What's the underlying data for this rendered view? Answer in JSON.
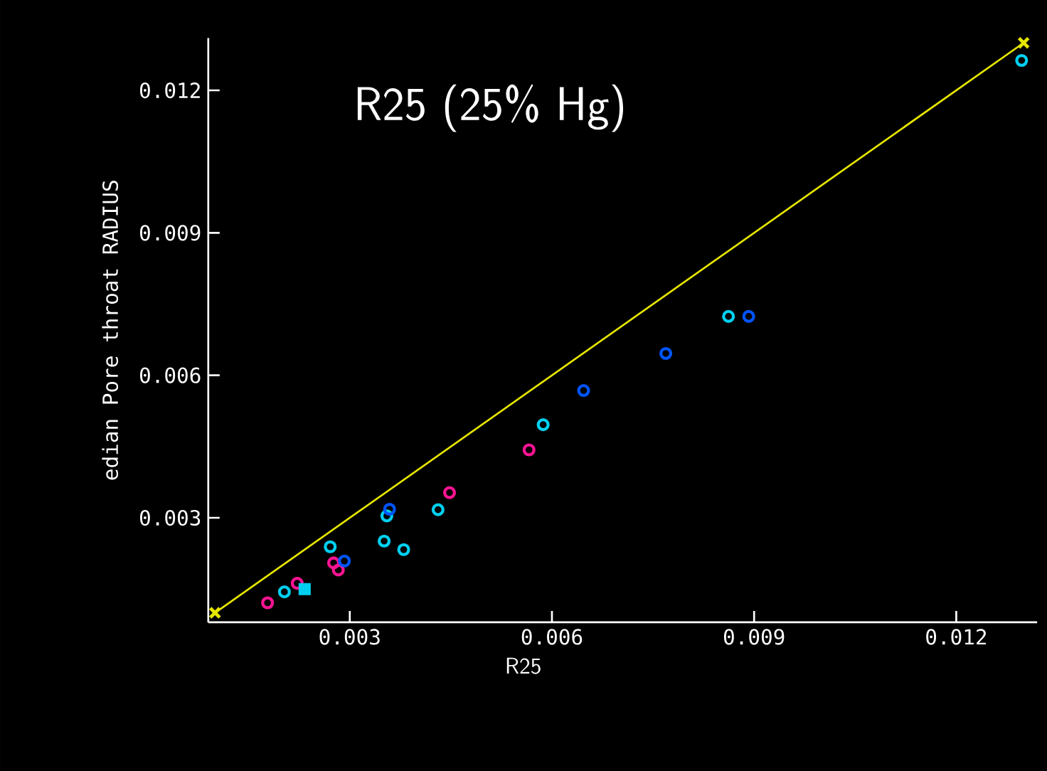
{
  "chart_data": {
    "type": "scatter",
    "title": "R25 (25% Hg)",
    "xlabel": "R25",
    "ylabel": "edian Pore throat RADIUS",
    "xlim": [
      0.0009,
      0.0132
    ],
    "ylim": [
      0.0008,
      0.0131
    ],
    "xticks": [
      0.003,
      0.006,
      0.009,
      0.012
    ],
    "yticks": [
      0.003,
      0.006,
      0.009,
      0.012
    ],
    "marker": "circle",
    "series": [
      {
        "type": "line",
        "color": "#e6e600",
        "marker": "cross",
        "x": [
          0.001,
          0.013
        ],
        "values": [
          0.001,
          0.013
        ]
      },
      {
        "color": "#ff1493",
        "x": [
          0.00178,
          0.00222,
          0.00276,
          0.00283,
          0.00448,
          0.00566
        ],
        "values": [
          0.00121,
          0.00162,
          0.00205,
          0.0019,
          0.00353,
          0.00443
        ]
      },
      {
        "color": "#00d0f0",
        "x": [
          0.00203,
          0.00271,
          0.00351,
          0.0038,
          0.00355,
          0.00431,
          0.00587,
          0.00862,
          0.01297
        ],
        "values": [
          0.00144,
          0.00239,
          0.00251,
          0.00233,
          0.00304,
          0.00317,
          0.00496,
          0.00724,
          0.01263
        ]
      },
      {
        "color": "#00d0f0",
        "marker": "square",
        "x": [
          0.00233
        ],
        "values": [
          0.0015
        ]
      },
      {
        "color": "#0055ff",
        "x": [
          0.00292,
          0.00359,
          0.00647,
          0.00769,
          0.00892
        ],
        "values": [
          0.00209,
          0.00318,
          0.00568,
          0.00646,
          0.00724
        ]
      }
    ]
  }
}
